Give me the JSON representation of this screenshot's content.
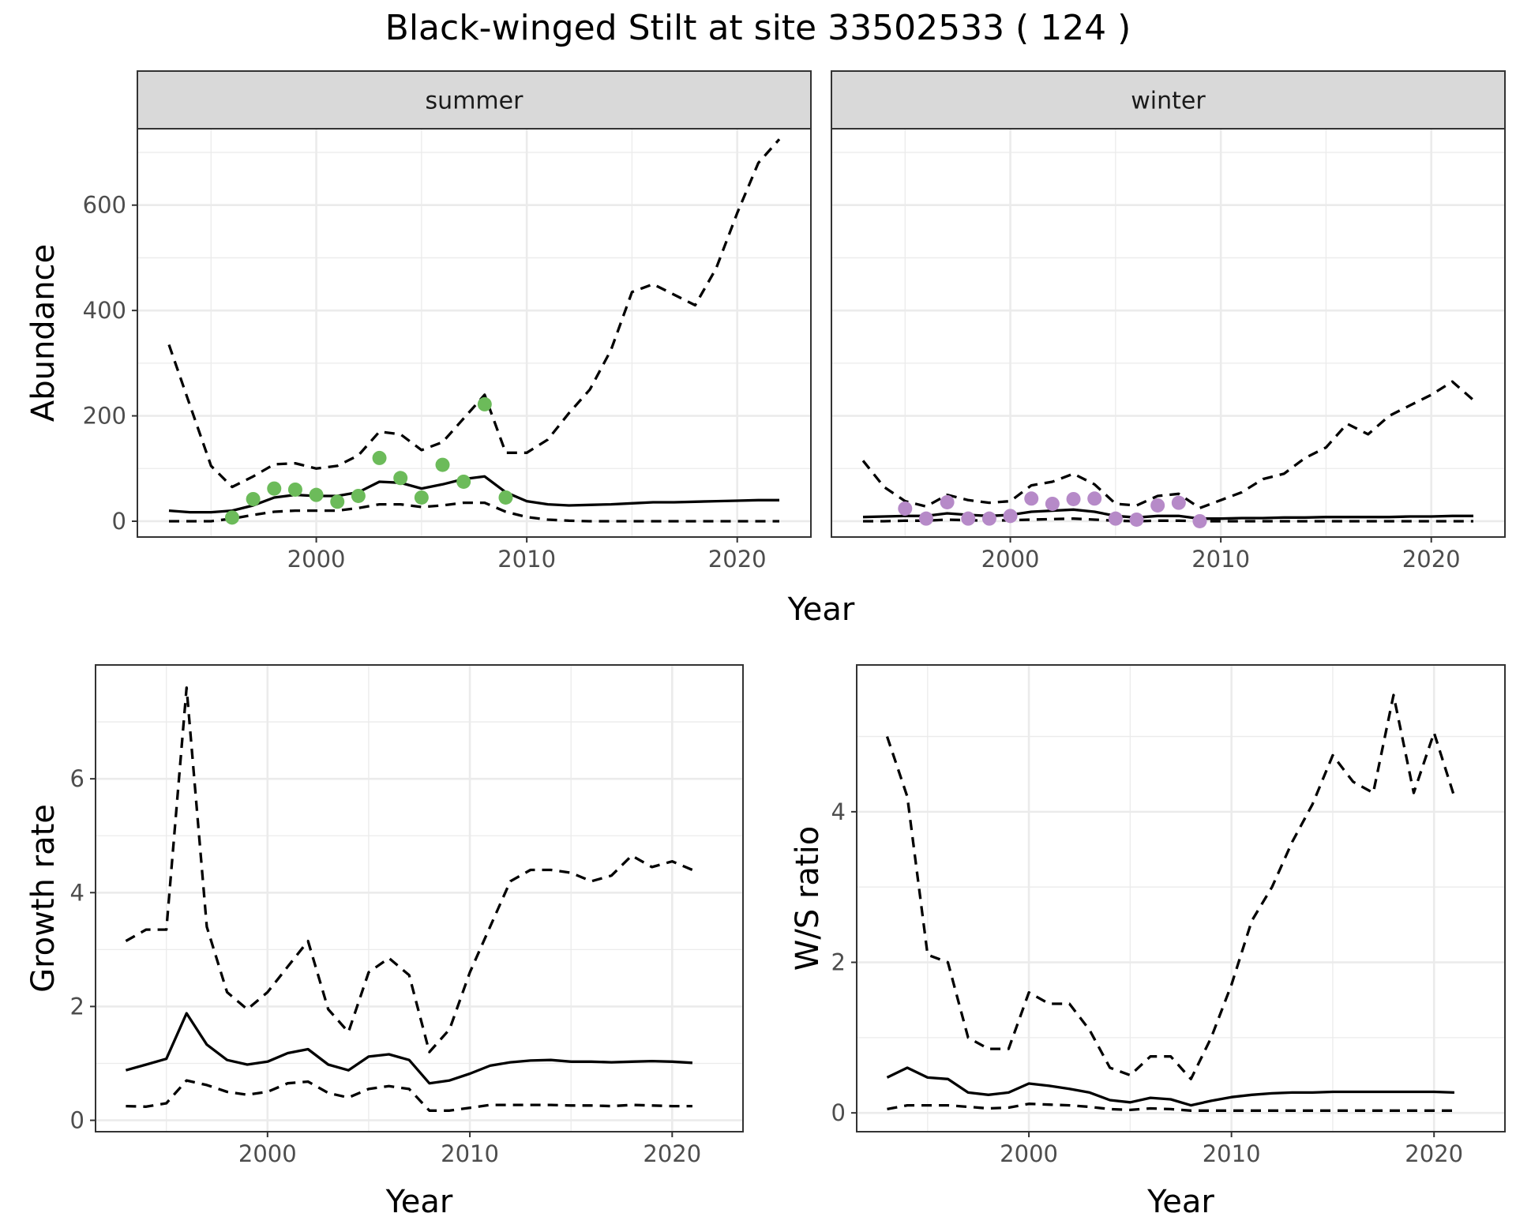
{
  "title": "Black-winged Stilt at site 33502533 ( 124 )",
  "colors": {
    "summer_points": "#6cbb5a",
    "winter_points": "#b68ac8"
  },
  "chart_data": [
    {
      "type": "line",
      "facet": "summer",
      "xlabel": "Year",
      "ylabel": "Abundance",
      "xlim": [
        1991.5,
        2023.5
      ],
      "ylim": [
        -30,
        745
      ],
      "xticks": [
        2000,
        2010,
        2020
      ],
      "yticks": [
        0,
        200,
        400,
        600
      ],
      "xticks_minor": [
        1995,
        2005,
        2015
      ],
      "yticks_minor": [
        100,
        300,
        500,
        700
      ],
      "series": [
        {
          "style": "solid",
          "x": [
            1993,
            1994,
            1995,
            1996,
            1997,
            1998,
            1999,
            2000,
            2001,
            2002,
            2003,
            2004,
            2005,
            2006,
            2007,
            2008,
            2009,
            2010,
            2011,
            2012,
            2013,
            2014,
            2015,
            2016,
            2017,
            2018,
            2019,
            2020,
            2021,
            2022
          ],
          "y": [
            20,
            17,
            17,
            20,
            30,
            45,
            50,
            48,
            48,
            55,
            75,
            73,
            62,
            70,
            80,
            85,
            55,
            38,
            32,
            30,
            31,
            32,
            34,
            36,
            36,
            37,
            38,
            39,
            40,
            40
          ]
        },
        {
          "style": "dashed",
          "x": [
            1993,
            1994,
            1995,
            1996,
            1997,
            1998,
            1999,
            2000,
            2001,
            2002,
            2003,
            2004,
            2005,
            2006,
            2007,
            2008,
            2009,
            2010,
            2011,
            2012,
            2013,
            2014,
            2015,
            2016,
            2017,
            2018,
            2019,
            2020,
            2021,
            2022
          ],
          "y": [
            335,
            220,
            105,
            65,
            85,
            108,
            110,
            100,
            105,
            125,
            170,
            165,
            135,
            150,
            195,
            240,
            130,
            130,
            155,
            205,
            250,
            325,
            435,
            450,
            430,
            410,
            480,
            585,
            680,
            725
          ]
        },
        {
          "style": "dashed",
          "x": [
            1993,
            1994,
            1995,
            1996,
            1997,
            1998,
            1999,
            2000,
            2001,
            2002,
            2003,
            2004,
            2005,
            2006,
            2007,
            2008,
            2009,
            2010,
            2011,
            2012,
            2013,
            2014,
            2015,
            2016,
            2017,
            2018,
            2019,
            2020,
            2021,
            2022
          ],
          "y": [
            0,
            0,
            0,
            5,
            12,
            18,
            20,
            20,
            20,
            25,
            32,
            32,
            27,
            30,
            35,
            35,
            18,
            8,
            3,
            1,
            0,
            0,
            0,
            0,
            0,
            0,
            0,
            0,
            0,
            0
          ]
        },
        {
          "style": "points",
          "x": [
            1996,
            1997,
            1998,
            1999,
            2000,
            2001,
            2002,
            2003,
            2004,
            2005,
            2006,
            2007,
            2008,
            2009
          ],
          "y": [
            7,
            42,
            62,
            60,
            50,
            37,
            48,
            120,
            82,
            45,
            107,
            75,
            222,
            45
          ]
        }
      ]
    },
    {
      "type": "line",
      "facet": "winter",
      "xlabel": "Year",
      "ylabel": "",
      "xlim": [
        1991.5,
        2023.5
      ],
      "ylim": [
        -30,
        745
      ],
      "xticks": [
        2000,
        2010,
        2020
      ],
      "yticks": [],
      "xticks_minor": [
        1995,
        2005,
        2015
      ],
      "yticks_minor": [],
      "series": [
        {
          "style": "solid",
          "x": [
            1993,
            1994,
            1995,
            1996,
            1997,
            1998,
            1999,
            2000,
            2001,
            2002,
            2003,
            2004,
            2005,
            2006,
            2007,
            2008,
            2009,
            2010,
            2011,
            2012,
            2013,
            2014,
            2015,
            2016,
            2017,
            2018,
            2019,
            2020,
            2021,
            2022
          ],
          "y": [
            8,
            9,
            10,
            10,
            15,
            12,
            10,
            12,
            18,
            20,
            22,
            18,
            10,
            7,
            10,
            10,
            5,
            5,
            6,
            6,
            7,
            7,
            8,
            8,
            8,
            8,
            9,
            9,
            10,
            10
          ]
        },
        {
          "style": "dashed",
          "x": [
            1993,
            1994,
            1995,
            1996,
            1997,
            1998,
            1999,
            2000,
            2001,
            2002,
            2003,
            2004,
            2005,
            2006,
            2007,
            2008,
            2009,
            2010,
            2011,
            2012,
            2013,
            2014,
            2015,
            2016,
            2017,
            2018,
            2019,
            2020,
            2021,
            2022
          ],
          "y": [
            115,
            65,
            38,
            28,
            50,
            40,
            35,
            38,
            68,
            75,
            90,
            70,
            33,
            30,
            48,
            52,
            25,
            40,
            55,
            80,
            90,
            120,
            140,
            185,
            165,
            200,
            220,
            240,
            265,
            230
          ]
        },
        {
          "style": "dashed",
          "x": [
            1993,
            1994,
            1995,
            1996,
            1997,
            1998,
            1999,
            2000,
            2001,
            2002,
            2003,
            2004,
            2005,
            2006,
            2007,
            2008,
            2009,
            2010,
            2011,
            2012,
            2013,
            2014,
            2015,
            2016,
            2017,
            2018,
            2019,
            2020,
            2021,
            2022
          ],
          "y": [
            0,
            0,
            1,
            1,
            3,
            2,
            1,
            2,
            3,
            4,
            5,
            3,
            1,
            0,
            1,
            1,
            0,
            0,
            0,
            0,
            0,
            0,
            0,
            0,
            0,
            0,
            0,
            0,
            0,
            0
          ]
        },
        {
          "style": "points",
          "x": [
            1995,
            1996,
            1997,
            1998,
            1999,
            2000,
            2001,
            2002,
            2003,
            2004,
            2005,
            2006,
            2007,
            2008,
            2009
          ],
          "y": [
            24,
            5,
            36,
            5,
            5,
            10,
            43,
            33,
            42,
            43,
            5,
            3,
            30,
            35,
            0
          ]
        }
      ]
    },
    {
      "type": "line",
      "facet": "",
      "xlabel": "Year",
      "ylabel": "Growth rate",
      "xlim": [
        1991.5,
        2023.5
      ],
      "ylim": [
        -0.2,
        8.0
      ],
      "xticks": [
        2000,
        2010,
        2020
      ],
      "yticks": [
        0,
        2,
        4,
        6
      ],
      "xticks_minor": [
        1995,
        2005,
        2015
      ],
      "yticks_minor": [
        1,
        3,
        5,
        7
      ],
      "series": [
        {
          "style": "solid",
          "x": [
            1993,
            1994,
            1995,
            1996,
            1997,
            1998,
            1999,
            2000,
            2001,
            2002,
            2003,
            2004,
            2005,
            2006,
            2007,
            2008,
            2009,
            2010,
            2011,
            2012,
            2013,
            2014,
            2015,
            2016,
            2017,
            2018,
            2019,
            2020,
            2021
          ],
          "y": [
            0.88,
            0.98,
            1.08,
            1.88,
            1.33,
            1.06,
            0.98,
            1.03,
            1.18,
            1.25,
            0.98,
            0.88,
            1.12,
            1.16,
            1.06,
            0.65,
            0.7,
            0.82,
            0.96,
            1.02,
            1.05,
            1.06,
            1.03,
            1.03,
            1.02,
            1.03,
            1.04,
            1.03,
            1.01
          ]
        },
        {
          "style": "dashed",
          "x": [
            1993,
            1994,
            1995,
            1996,
            1997,
            1998,
            1999,
            2000,
            2001,
            2002,
            2003,
            2004,
            2005,
            2006,
            2007,
            2008,
            2009,
            2010,
            2011,
            2012,
            2013,
            2014,
            2015,
            2016,
            2017,
            2018,
            2019,
            2020,
            2021
          ],
          "y": [
            3.15,
            3.35,
            3.35,
            7.6,
            3.4,
            2.25,
            1.95,
            2.25,
            2.7,
            3.15,
            1.95,
            1.55,
            2.6,
            2.85,
            2.55,
            1.2,
            1.6,
            2.6,
            3.4,
            4.2,
            4.4,
            4.4,
            4.35,
            4.2,
            4.3,
            4.65,
            4.45,
            4.55,
            4.4
          ]
        },
        {
          "style": "dashed",
          "x": [
            1993,
            1994,
            1995,
            1996,
            1997,
            1998,
            1999,
            2000,
            2001,
            2002,
            2003,
            2004,
            2005,
            2006,
            2007,
            2008,
            2009,
            2010,
            2011,
            2012,
            2013,
            2014,
            2015,
            2016,
            2017,
            2018,
            2019,
            2020,
            2021
          ],
          "y": [
            0.25,
            0.24,
            0.3,
            0.7,
            0.62,
            0.5,
            0.45,
            0.5,
            0.65,
            0.68,
            0.48,
            0.4,
            0.55,
            0.6,
            0.55,
            0.17,
            0.17,
            0.22,
            0.27,
            0.27,
            0.27,
            0.27,
            0.26,
            0.26,
            0.25,
            0.27,
            0.26,
            0.25,
            0.25
          ]
        }
      ]
    },
    {
      "type": "line",
      "facet": "",
      "xlabel": "Year",
      "ylabel": "W/S ratio",
      "xlim": [
        1991.5,
        2023.5
      ],
      "ylim": [
        -0.25,
        5.95
      ],
      "xticks": [
        2000,
        2010,
        2020
      ],
      "yticks": [
        0,
        2,
        4
      ],
      "xticks_minor": [
        1995,
        2005,
        2015
      ],
      "yticks_minor": [
        1,
        3,
        5
      ],
      "series": [
        {
          "style": "solid",
          "x": [
            1993,
            1994,
            1995,
            1996,
            1997,
            1998,
            1999,
            2000,
            2001,
            2002,
            2003,
            2004,
            2005,
            2006,
            2007,
            2008,
            2009,
            2010,
            2011,
            2012,
            2013,
            2014,
            2015,
            2016,
            2017,
            2018,
            2019,
            2020,
            2021
          ],
          "y": [
            0.47,
            0.6,
            0.47,
            0.45,
            0.27,
            0.24,
            0.27,
            0.39,
            0.36,
            0.32,
            0.27,
            0.17,
            0.14,
            0.2,
            0.18,
            0.1,
            0.16,
            0.21,
            0.24,
            0.26,
            0.27,
            0.27,
            0.28,
            0.28,
            0.28,
            0.28,
            0.28,
            0.28,
            0.27
          ]
        },
        {
          "style": "dashed",
          "x": [
            1993,
            1994,
            1995,
            1996,
            1997,
            1998,
            1999,
            2000,
            2001,
            2002,
            2003,
            2004,
            2005,
            2006,
            2007,
            2008,
            2009,
            2010,
            2011,
            2012,
            2013,
            2014,
            2015,
            2016,
            2017,
            2018,
            2019,
            2020,
            2021
          ],
          "y": [
            5.0,
            4.2,
            2.1,
            2.0,
            1.0,
            0.85,
            0.85,
            1.6,
            1.45,
            1.45,
            1.1,
            0.6,
            0.5,
            0.75,
            0.75,
            0.45,
            1.0,
            1.7,
            2.55,
            3.0,
            3.6,
            4.1,
            4.75,
            4.4,
            4.25,
            5.55,
            4.25,
            5.05,
            4.2
          ]
        },
        {
          "style": "dashed",
          "x": [
            1993,
            1994,
            1995,
            1996,
            1997,
            1998,
            1999,
            2000,
            2001,
            2002,
            2003,
            2004,
            2005,
            2006,
            2007,
            2008,
            2009,
            2010,
            2011,
            2012,
            2013,
            2014,
            2015,
            2016,
            2017,
            2018,
            2019,
            2020,
            2021
          ],
          "y": [
            0.05,
            0.1,
            0.1,
            0.1,
            0.08,
            0.06,
            0.07,
            0.12,
            0.11,
            0.1,
            0.08,
            0.05,
            0.04,
            0.06,
            0.05,
            0.03,
            0.03,
            0.03,
            0.03,
            0.03,
            0.03,
            0.03,
            0.03,
            0.03,
            0.03,
            0.03,
            0.03,
            0.03,
            0.03
          ]
        }
      ]
    }
  ]
}
